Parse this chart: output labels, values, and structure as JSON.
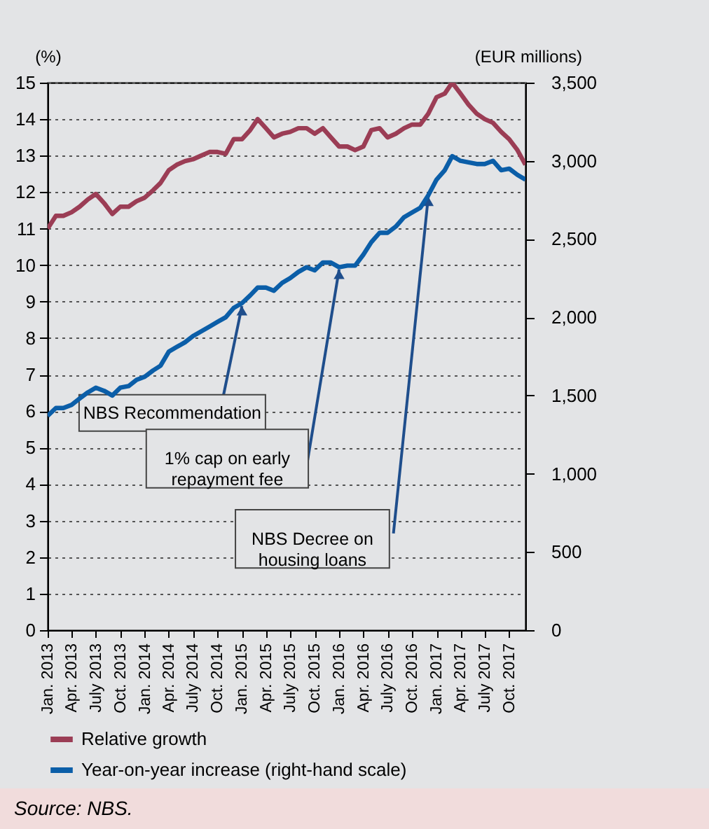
{
  "chart_data": {
    "type": "line",
    "ylabel": "(%)",
    "y2label": "(EUR millions)",
    "x": [
      "2013-01",
      "2013-02",
      "2013-03",
      "2013-04",
      "2013-05",
      "2013-06",
      "2013-07",
      "2013-08",
      "2013-09",
      "2013-10",
      "2013-11",
      "2013-12",
      "2014-01",
      "2014-02",
      "2014-03",
      "2014-04",
      "2014-05",
      "2014-06",
      "2014-07",
      "2014-08",
      "2014-09",
      "2014-10",
      "2014-11",
      "2014-12",
      "2015-01",
      "2015-02",
      "2015-03",
      "2015-04",
      "2015-05",
      "2015-06",
      "2015-07",
      "2015-08",
      "2015-09",
      "2015-10",
      "2015-11",
      "2015-12",
      "2016-01",
      "2016-02",
      "2016-03",
      "2016-04",
      "2016-05",
      "2016-06",
      "2016-07",
      "2016-08",
      "2016-09",
      "2016-10",
      "2016-11",
      "2016-12",
      "2017-01",
      "2017-02",
      "2017-03",
      "2017-04",
      "2017-05",
      "2017-06",
      "2017-07",
      "2017-08",
      "2017-09",
      "2017-10",
      "2017-11",
      "2017-12"
    ],
    "series": [
      {
        "name": "Relative growth",
        "color": "#9b3d55",
        "values": [
          11.0,
          11.35,
          11.35,
          11.45,
          11.6,
          11.8,
          11.95,
          11.7,
          11.4,
          11.6,
          11.6,
          11.75,
          11.85,
          12.05,
          12.25,
          12.6,
          12.75,
          12.85,
          12.9,
          13.0,
          13.1,
          13.1,
          13.05,
          13.45,
          13.45,
          13.7,
          14.0,
          13.75,
          13.5,
          13.6,
          13.65,
          13.75,
          13.75,
          13.6,
          13.75,
          13.5,
          13.25,
          13.25,
          13.15,
          13.25,
          13.7,
          13.75,
          13.5,
          13.6,
          13.75,
          13.85,
          13.85,
          14.15,
          14.6,
          14.7,
          15.0,
          14.7,
          14.4,
          14.15,
          14.0,
          13.9,
          13.65,
          13.45,
          13.15,
          12.75
        ]
      },
      {
        "name": "Year-on-year increase (right-hand scale)",
        "color": "#0b5ea8",
        "axis": "y2",
        "values": [
          1370,
          1420,
          1420,
          1440,
          1480,
          1520,
          1550,
          1530,
          1500,
          1550,
          1560,
          1600,
          1620,
          1660,
          1690,
          1780,
          1810,
          1840,
          1880,
          1910,
          1940,
          1970,
          2000,
          2060,
          2090,
          2140,
          2190,
          2190,
          2170,
          2220,
          2250,
          2290,
          2320,
          2300,
          2350,
          2350,
          2320,
          2330,
          2330,
          2400,
          2480,
          2540,
          2540,
          2580,
          2640,
          2670,
          2700,
          2780,
          2880,
          2940,
          3030,
          3000,
          2990,
          2980,
          2980,
          3000,
          2940,
          2950,
          2910,
          2880
        ]
      }
    ],
    "xlim": [
      "2013-01",
      "2017-12"
    ],
    "xticks": [
      {
        "value": "2013-01",
        "label": "Jan. 2013"
      },
      {
        "value": "2013-04",
        "label": "Apr. 2013"
      },
      {
        "value": "2013-07",
        "label": "July 2013"
      },
      {
        "value": "2013-10",
        "label": "Oct. 2013"
      },
      {
        "value": "2014-01",
        "label": "Jan. 2014"
      },
      {
        "value": "2014-04",
        "label": "Apr. 2014"
      },
      {
        "value": "2014-07",
        "label": "July 2014"
      },
      {
        "value": "2014-10",
        "label": "Oct. 2014"
      },
      {
        "value": "2015-01",
        "label": "Jan. 2015"
      },
      {
        "value": "2015-04",
        "label": "Apr. 2015"
      },
      {
        "value": "2015-07",
        "label": "July 2015"
      },
      {
        "value": "2015-10",
        "label": "Oct. 2015"
      },
      {
        "value": "2016-01",
        "label": "Jan. 2016"
      },
      {
        "value": "2016-04",
        "label": "Apr. 2016"
      },
      {
        "value": "2016-07",
        "label": "July 2016"
      },
      {
        "value": "2016-10",
        "label": "Oct. 2016"
      },
      {
        "value": "2017-01",
        "label": "Jan. 2017"
      },
      {
        "value": "2017-04",
        "label": "Apr. 2017"
      },
      {
        "value": "2017-07",
        "label": "July 2017"
      },
      {
        "value": "2017-10",
        "label": "Oct. 2017"
      }
    ],
    "ylim": [
      0,
      15
    ],
    "yticks": [
      0,
      1,
      2,
      3,
      4,
      5,
      6,
      7,
      8,
      9,
      10,
      11,
      12,
      13,
      14,
      15
    ],
    "y2lim": [
      0,
      3500
    ],
    "y2ticks": [
      0,
      500,
      {
        "value": 1000,
        "label": "1,000"
      },
      {
        "value": 1500,
        "label": "1,500"
      },
      {
        "value": 2000,
        "label": "2,000"
      },
      {
        "value": 2500,
        "label": "2,500"
      },
      {
        "value": 3000,
        "label": "3,000"
      },
      {
        "value": 3500,
        "label": "3,500"
      }
    ],
    "grid": "y",
    "legend": "bottom",
    "line_style": "solid",
    "annotations": [
      {
        "text": "NBS Recommendation",
        "x": "2015-01",
        "y": 9.0
      },
      {
        "text": "1% cap on early\nrepayment fee",
        "x": "2016-01",
        "y": 10.0
      },
      {
        "text": "NBS Decree on\nhousing loans",
        "x": "2016-12",
        "y": 12.0
      },
      "Source: NBS."
    ]
  }
}
